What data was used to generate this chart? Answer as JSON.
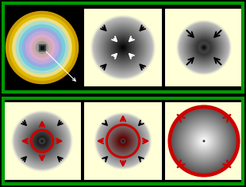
{
  "bg_black": "#000000",
  "bg_cream": "#ffffd8",
  "border_green": "#009900",
  "border_width": 2.5,
  "arrow_black": "#111111",
  "arrow_white": "#ffffff",
  "arrow_red": "#cc0000",
  "shock_red": "#cc0000",
  "figsize": [
    3.1,
    2.36
  ],
  "dpi": 100,
  "star_colors": [
    "#cc9900",
    "#ddbb00",
    "#eedd88",
    "#aaddcc",
    "#77ccdd",
    "#99aadd",
    "#bbaadd",
    "#ddaacc",
    "#ccaaaa",
    "#999999",
    "#666655"
  ],
  "top_row_heights": [
    0.48
  ],
  "bottom_row_heights": [
    0.48
  ]
}
